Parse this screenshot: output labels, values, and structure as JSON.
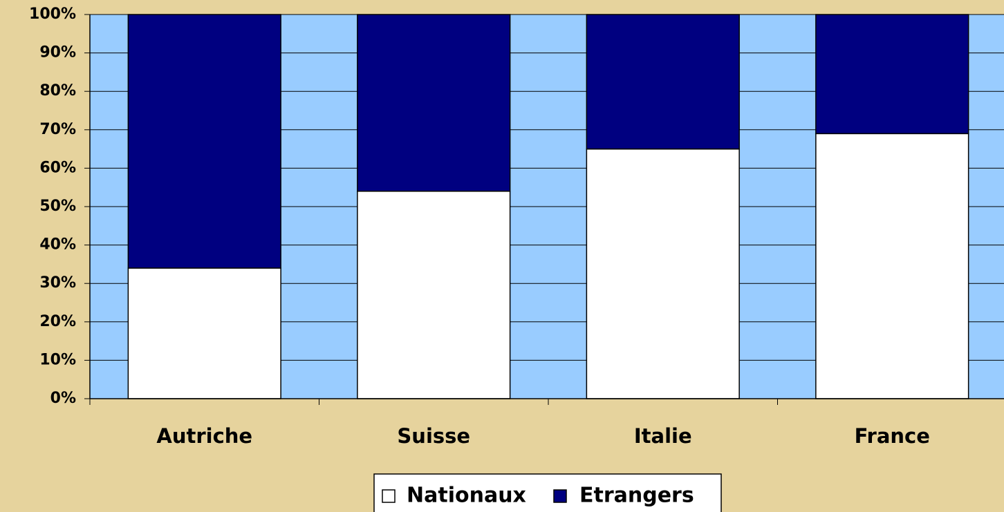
{
  "chart_data": {
    "type": "bar",
    "stacked": true,
    "categories": [
      "Autriche",
      "Suisse",
      "Italie",
      "France"
    ],
    "series": [
      {
        "name": "Nationaux",
        "color": "#ffffff",
        "values": [
          34,
          54,
          65,
          69
        ]
      },
      {
        "name": "Etrangers",
        "color": "#000080",
        "values": [
          66,
          46,
          35,
          31
        ]
      }
    ],
    "ylim": [
      0,
      100
    ],
    "yticks": [
      {
        "value": 0,
        "label": "0%"
      },
      {
        "value": 10,
        "label": "10%"
      },
      {
        "value": 20,
        "label": "20%"
      },
      {
        "value": 30,
        "label": "30%"
      },
      {
        "value": 40,
        "label": "40%"
      },
      {
        "value": 50,
        "label": "50%"
      },
      {
        "value": 60,
        "label": "60%"
      },
      {
        "value": 70,
        "label": "70%"
      },
      {
        "value": 80,
        "label": "80%"
      },
      {
        "value": 90,
        "label": "90%"
      },
      {
        "value": 100,
        "label": "100%"
      }
    ],
    "grid": true,
    "plot_background": "#99ccff",
    "legend": "bottom"
  }
}
